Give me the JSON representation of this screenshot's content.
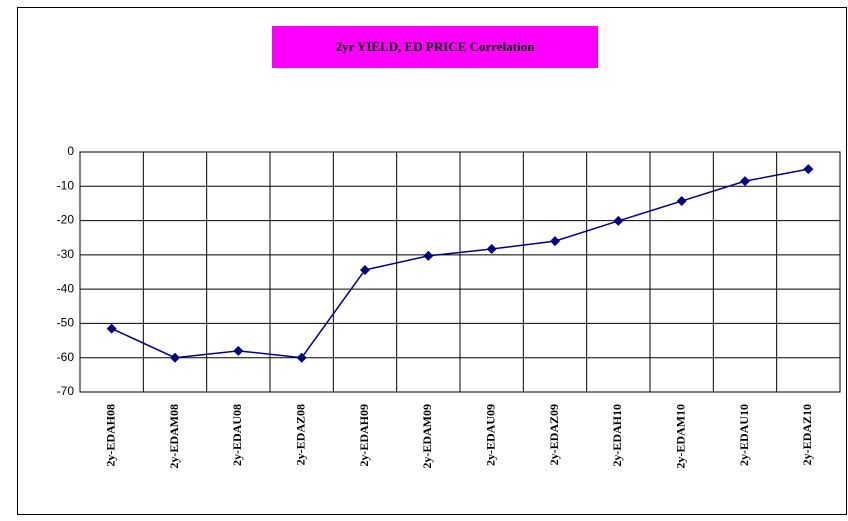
{
  "chart_data": {
    "type": "line",
    "title": "2yr YIELD, ED PRICE Correlation",
    "categories": [
      "2y-EDAH08",
      "2y-EDAM08",
      "2y-EDAU08",
      "2y-EDAZ08",
      "2y-EDAH09",
      "2y-EDAM09",
      "2y-EDAU09",
      "2y-EDAZ09",
      "2y-EDAH10",
      "2y-EDAM10",
      "2y-EDAU10",
      "2y-EDAZ10"
    ],
    "series": [
      {
        "name": "2yr YIELD, ED PRICE Correlation",
        "color": "#000080",
        "values": [
          -51.5,
          -60,
          -58,
          -60,
          -34.4,
          -30.3,
          -28.3,
          -26,
          -20.1,
          -14.3,
          -8.5,
          -5
        ]
      }
    ],
    "ylim": [
      -70,
      0
    ],
    "yticks": [
      0,
      -10,
      -20,
      -30,
      -40,
      -50,
      -60,
      -70
    ],
    "grid": true,
    "title_background": "#ff00ff"
  }
}
